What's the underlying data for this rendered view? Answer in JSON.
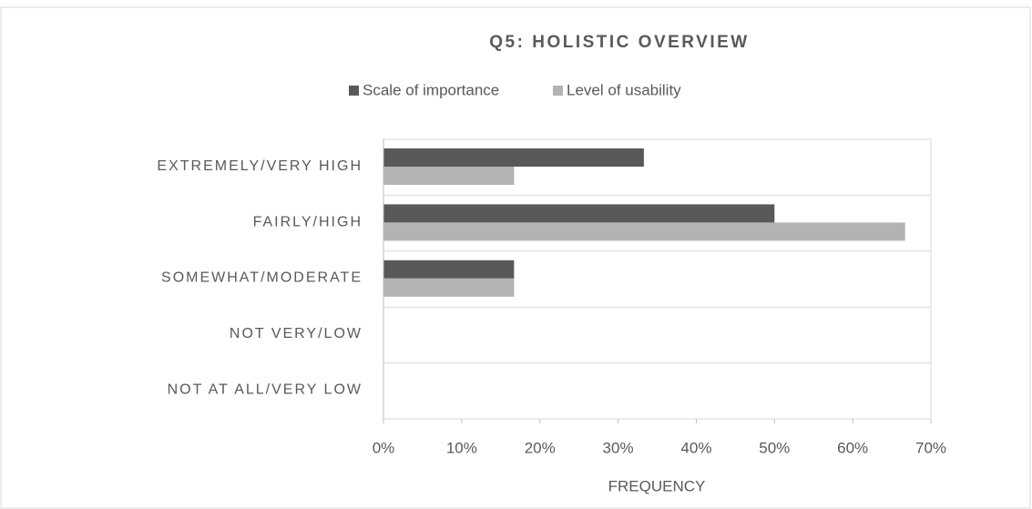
{
  "chart_data": {
    "type": "hbar",
    "title": "Q5: HOLISTIC OVERVIEW",
    "x_label": "FREQUENCY",
    "categories": [
      "EXTREMELY/VERY HIGH",
      "FAIRLY/HIGH",
      "SOMEWHAT/MODERATE",
      "NOT VERY/LOW",
      "NOT AT ALL/VERY LOW"
    ],
    "series": [
      {
        "name": "Scale of importance",
        "color": "#595959",
        "values": [
          33.3,
          50,
          16.7,
          0,
          0
        ]
      },
      {
        "name": "Level of usability",
        "color": "#b3b3b3",
        "values": [
          16.7,
          66.7,
          16.7,
          0,
          0
        ]
      }
    ],
    "xlim": [
      0,
      70
    ],
    "xticks": [
      {
        "value": 0,
        "label": "0%"
      },
      {
        "value": 10,
        "label": "10%"
      },
      {
        "value": 20,
        "label": "20%"
      },
      {
        "value": 30,
        "label": "30%"
      },
      {
        "value": 40,
        "label": "40%"
      },
      {
        "value": 50,
        "label": "50%"
      },
      {
        "value": 60,
        "label": "60%"
      },
      {
        "value": 70,
        "label": "70%"
      }
    ],
    "legend": "top"
  }
}
